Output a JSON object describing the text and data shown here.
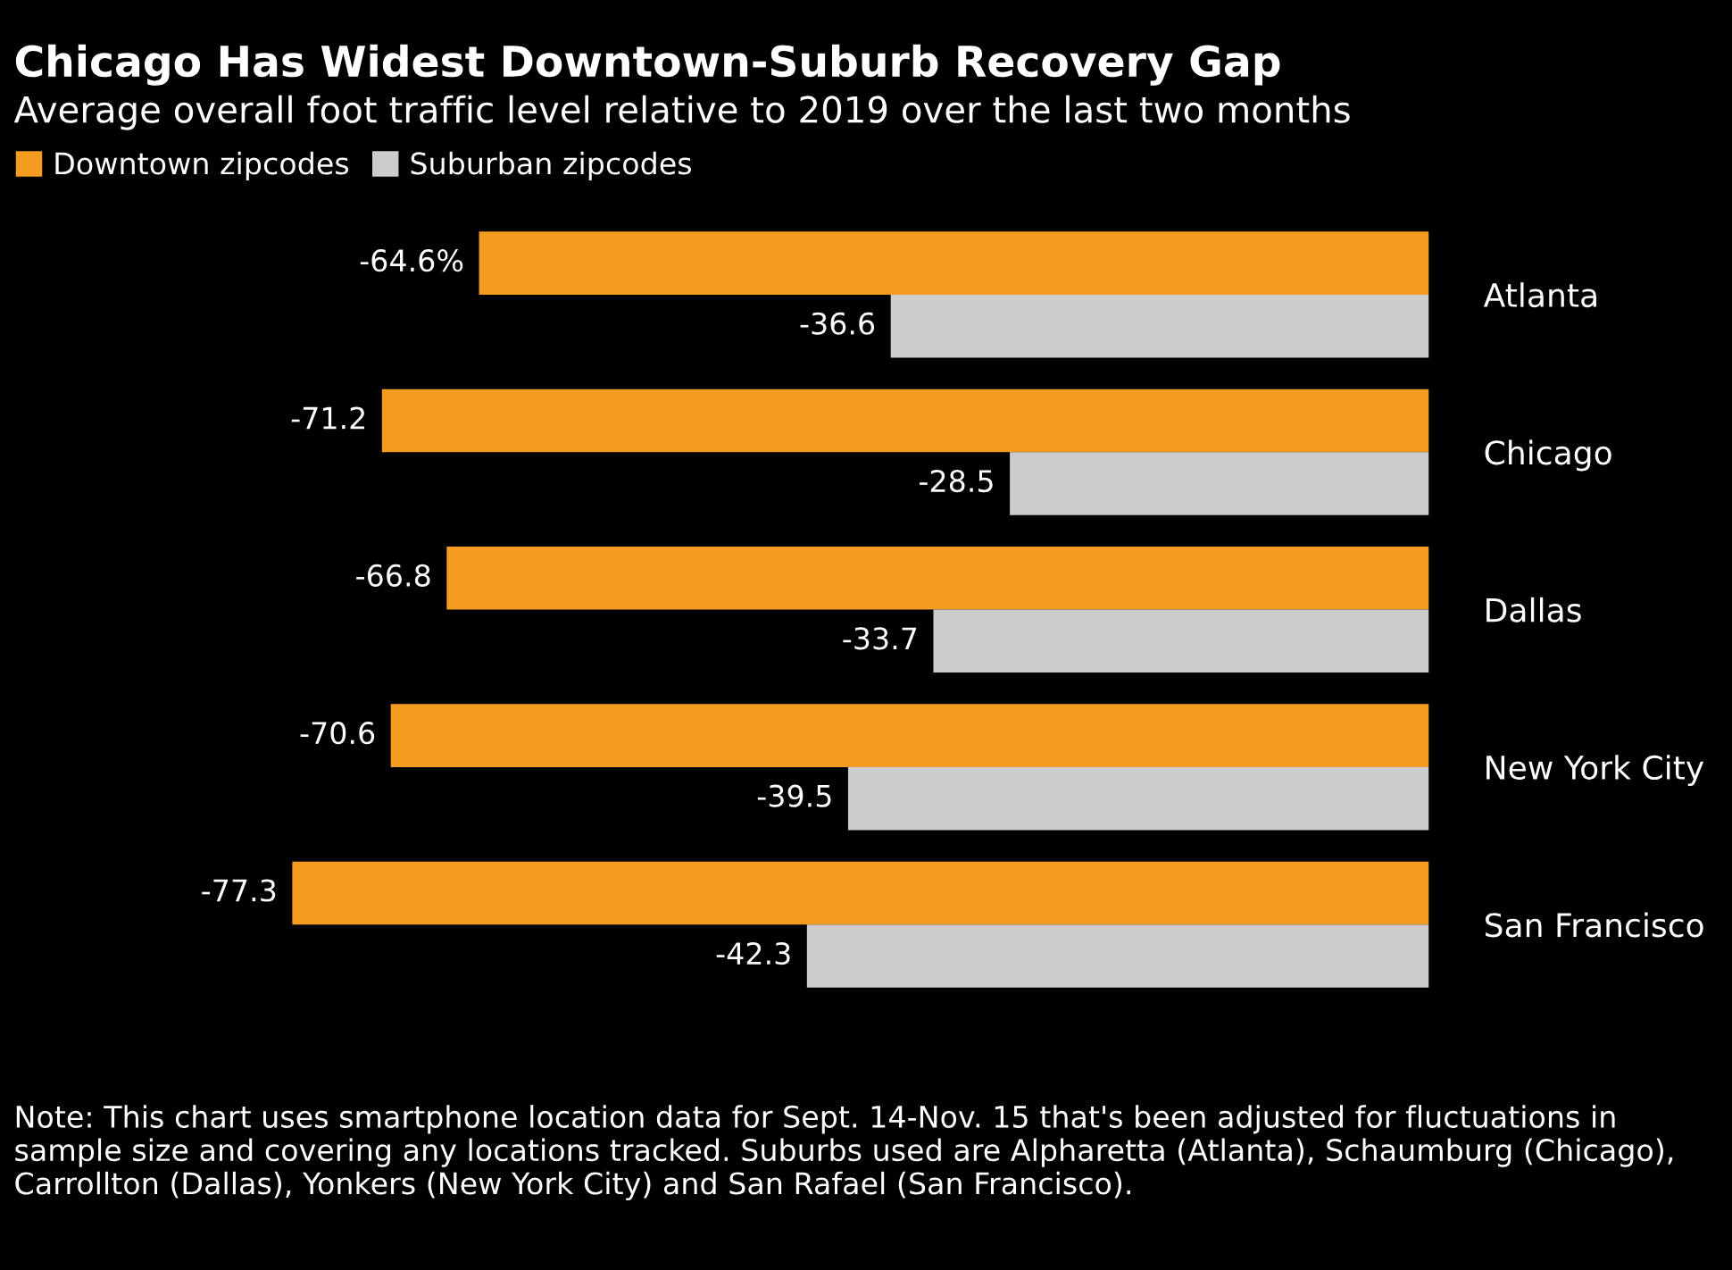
{
  "chart_data": {
    "type": "bar",
    "orientation": "horizontal",
    "title": "Chicago Has Widest Downtown-Suburb Recovery Gap",
    "subtitle": "Average overall foot traffic level relative to 2019 over the last two months",
    "categories": [
      "Atlanta",
      "Chicago",
      "Dallas",
      "New York City",
      "San Francisco"
    ],
    "series": [
      {
        "name": "Downtown zipcodes",
        "color": "#f39c1f",
        "values": [
          -64.6,
          -71.2,
          -66.8,
          -70.6,
          -77.3
        ],
        "value_labels": [
          "-64.6%",
          "-71.2",
          "-66.8",
          "-70.6",
          "-77.3"
        ]
      },
      {
        "name": "Suburban zipcodes",
        "color": "#cccccc",
        "values": [
          -36.6,
          -28.5,
          -33.7,
          -39.5,
          -42.3
        ],
        "value_labels": [
          "-36.6",
          "-28.5",
          "-33.7",
          "-39.5",
          "-42.3"
        ]
      }
    ],
    "legend": "top left",
    "grid": false,
    "annotations": [
      "Note: This chart uses smartphone location data for Sept. 14-Nov. 15 that's been adjusted for fluctuations in sample size and covering any locations tracked. Suburbs used are Alpharetta (Atlanta), Schaumburg (Chicago), Carrollton (Dallas), Yonkers (New York City) and San Rafael (San Francisco)."
    ]
  }
}
